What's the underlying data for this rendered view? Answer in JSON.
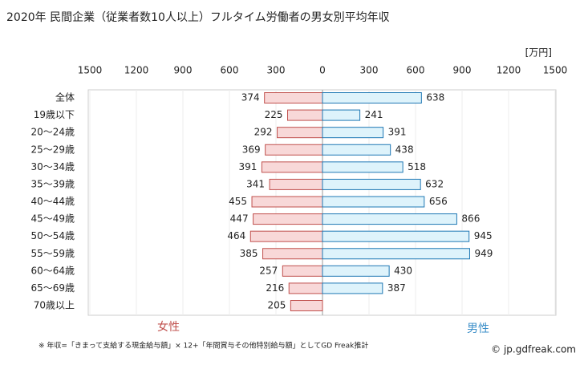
{
  "title": "2020年 民間企業（従業者数10人以上）フルタイム労働者の男女別平均年収",
  "unit": "[万円]",
  "note": "※ 年収=「きまって支給する現金給与額」× 12+「年間賞与その他特別給与額」としてGD Freak推計",
  "credit": "© jp.gdfreak.com",
  "chart_data": [
    {
      "type": "bar",
      "orientation": "horizontal",
      "name": "女性",
      "color": "#f8d8d8",
      "edge_color": "#c0504d",
      "label_color": "#c0504d",
      "categories": [
        "全体",
        "19歳以下",
        "20～24歳",
        "25～29歳",
        "30～34歳",
        "35～39歳",
        "40～44歳",
        "45～49歳",
        "50～54歳",
        "55～59歳",
        "60～64歳",
        "65～69歳",
        "70歳以上"
      ],
      "values": [
        374,
        225,
        292,
        369,
        391,
        341,
        455,
        447,
        464,
        385,
        257,
        216,
        205
      ],
      "xlim": [
        1500,
        0
      ],
      "xticks": [
        1500,
        1200,
        900,
        600,
        300
      ],
      "grid": true
    },
    {
      "type": "bar",
      "orientation": "horizontal",
      "name": "男性",
      "color": "#def3fb",
      "edge_color": "#1f78b4",
      "label_color": "#3a8ec8",
      "values": [
        638,
        241,
        391,
        438,
        518,
        632,
        656,
        866,
        945,
        949,
        430,
        387,
        null
      ],
      "xlim": [
        0,
        1500
      ],
      "xticks": [
        0,
        300,
        600,
        900,
        1200,
        1500
      ],
      "grid": true
    }
  ]
}
